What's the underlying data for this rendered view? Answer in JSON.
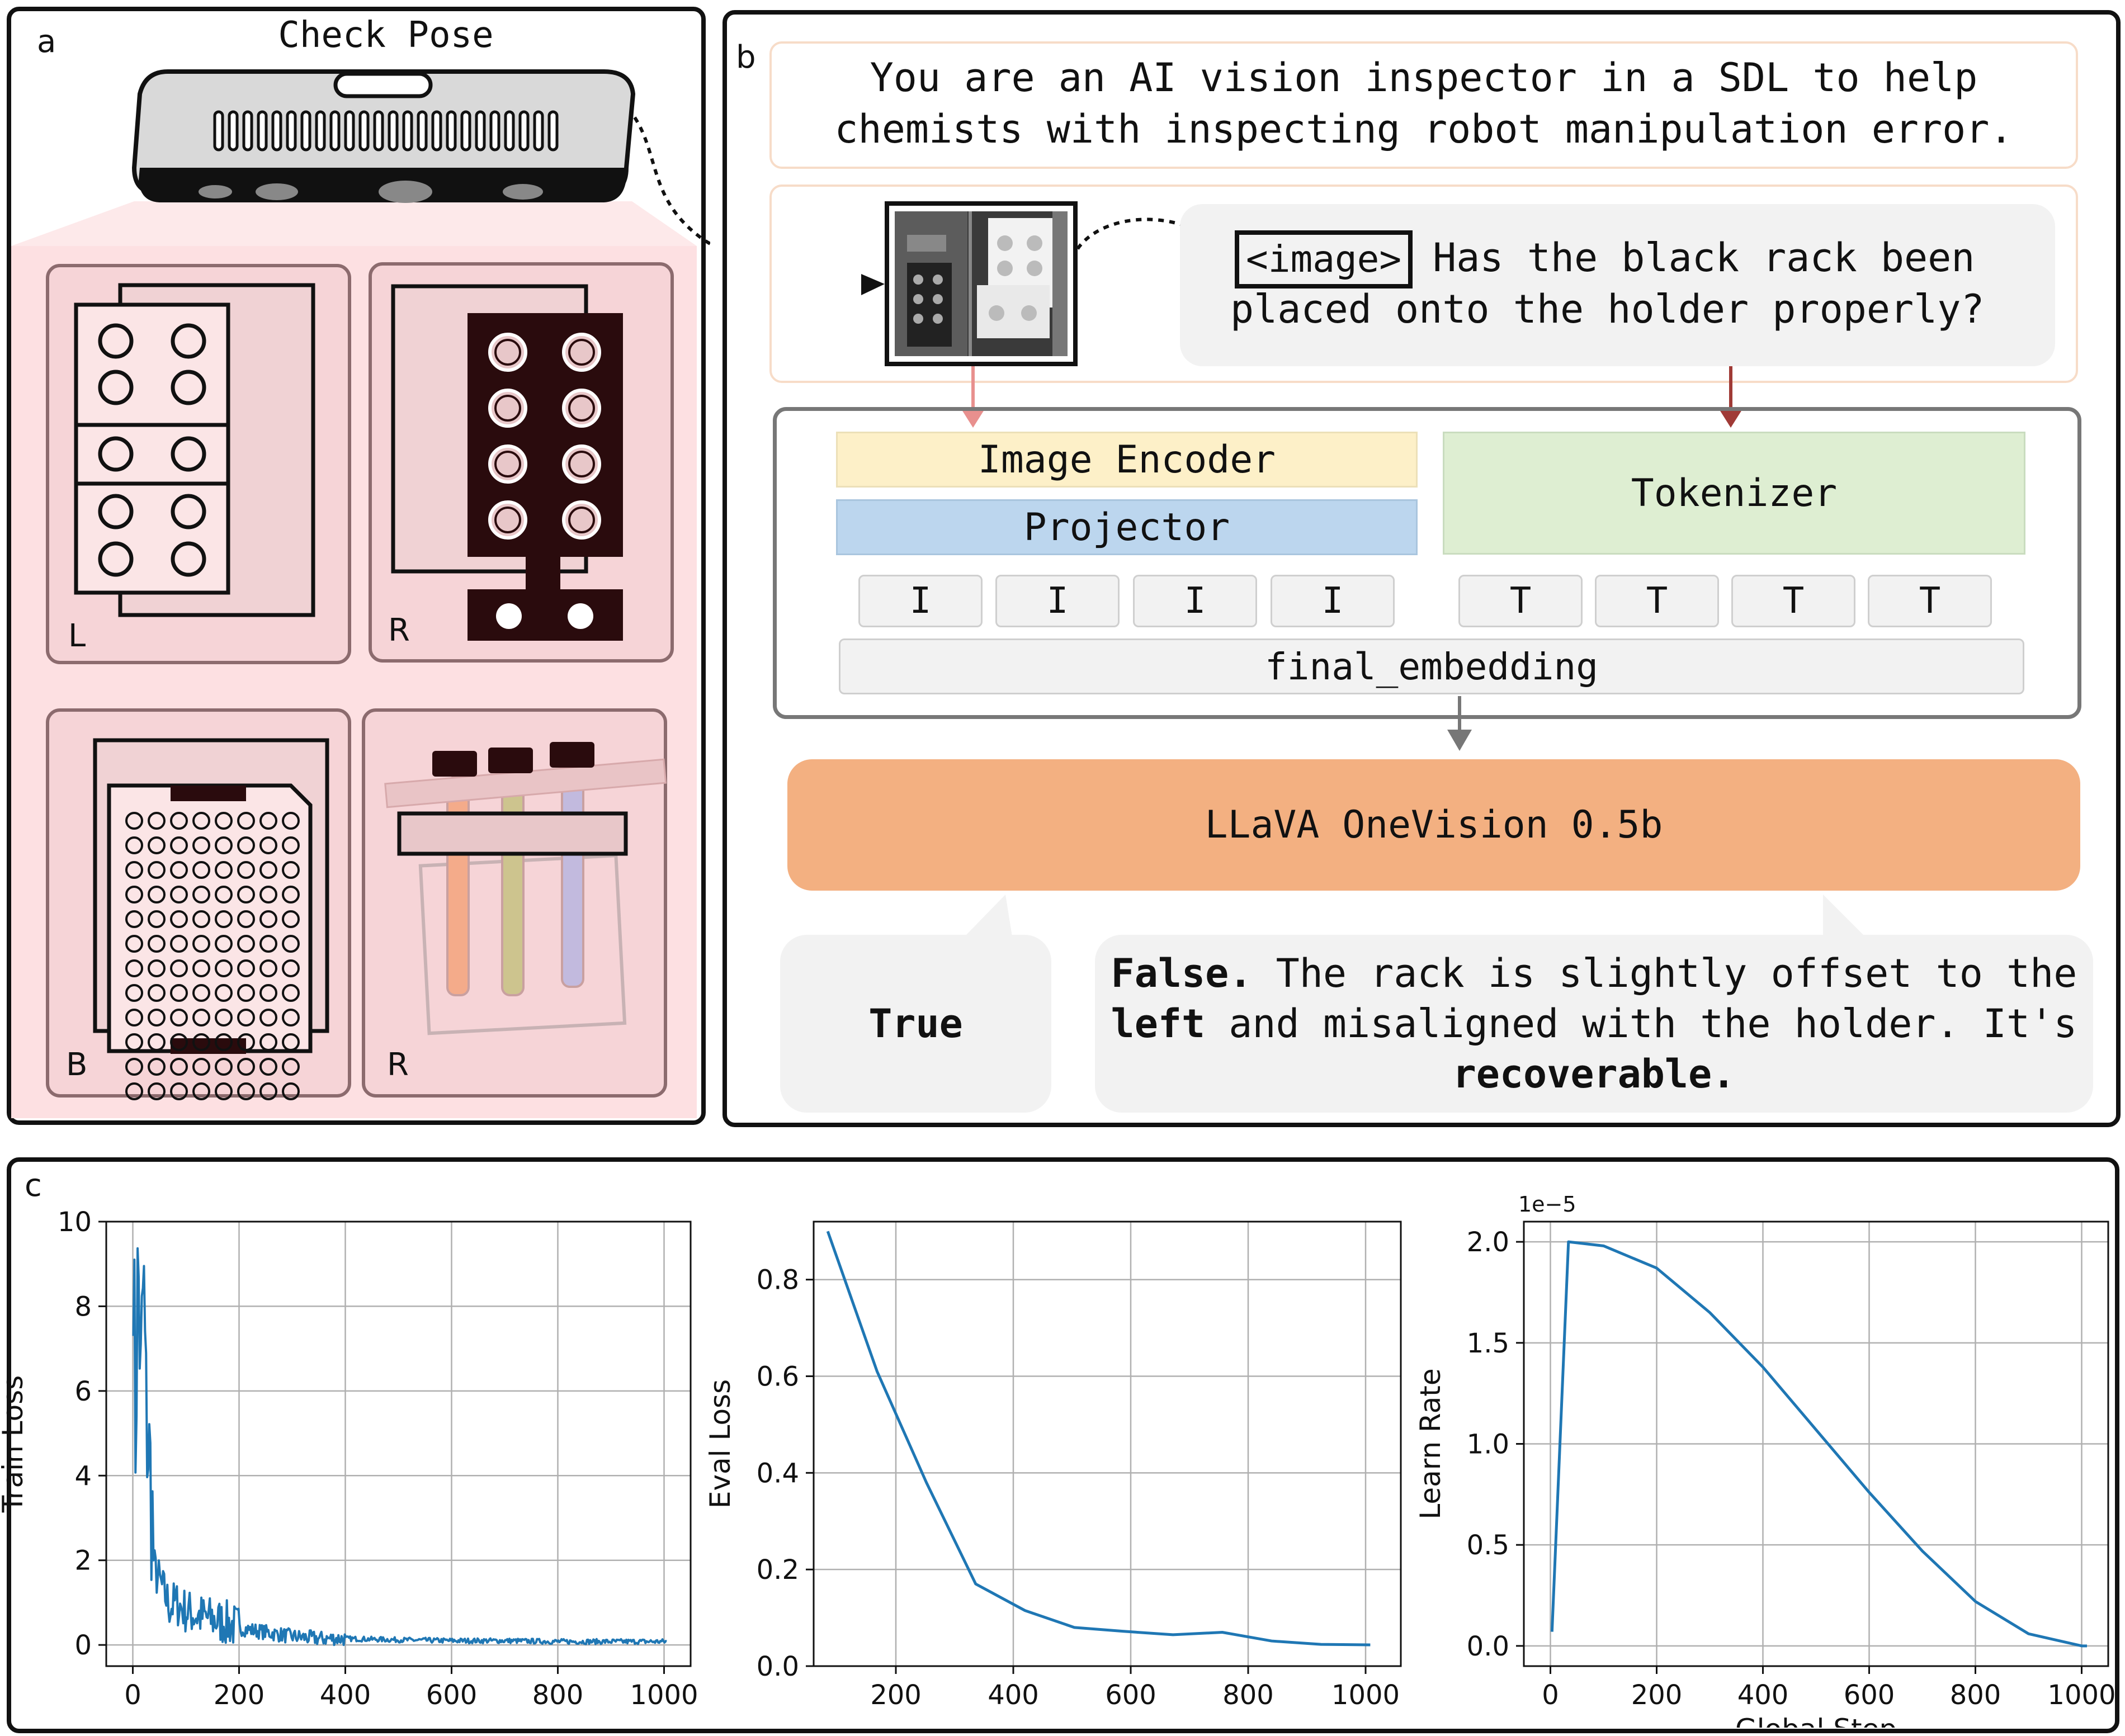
{
  "panel_a": {
    "label": "a",
    "camera_title": "Check Pose",
    "cards": [
      {
        "letter": "L"
      },
      {
        "letter": "R"
      },
      {
        "letter": "B"
      },
      {
        "letter": "R"
      }
    ]
  },
  "panel_b": {
    "label": "b",
    "system_prompt_lines": [
      "You are an AI vision inspector in a SDL to help",
      "chemists with inspecting robot manipulation error."
    ],
    "image_token": "<image>",
    "question_line1": " Has the black rack been",
    "question_line2": "placed onto the holder properly?",
    "image_encoder": "Image Encoder",
    "projector": "Projector",
    "tokenizer": "Tokenizer",
    "image_tokens": [
      "I",
      "I",
      "I",
      "I"
    ],
    "text_tokens": [
      "T",
      "T",
      "T",
      "T"
    ],
    "final_embedding": "final_embedding",
    "model": "LLaVA OneVision 0.5b",
    "answer_true": "True",
    "answer_false": {
      "bold1": "False.",
      "rest1": " The rack is slightly offset to the",
      "bold2": "left",
      "rest2": " and misaligned with the holder. It's",
      "bold3": "recoverable."
    },
    "colors": {
      "encoder": "#fdf0c8",
      "projector": "#bcd6ee",
      "tokenizer": "#deeed2",
      "model": "#f3b081",
      "arrow_image": "#e8908e",
      "arrow_text": "#a03a36"
    }
  },
  "panel_c": {
    "label": "c",
    "chart_data": [
      {
        "type": "line",
        "ylabel": "Train Loss",
        "xlabel": "",
        "xlim": [
          -50,
          1050
        ],
        "ylim": [
          -0.5,
          10
        ],
        "xticks": [
          0,
          200,
          400,
          600,
          800,
          1000
        ],
        "yticks": [
          0,
          2,
          4,
          6,
          8,
          10
        ],
        "grid": true,
        "color": "#1f77b4",
        "series": [
          {
            "x": [
              1,
              5,
              10,
              15,
              20,
              25,
              30,
              35,
              40,
              50,
              60,
              70,
              80,
              100,
              120,
              150,
              180,
              200,
              250,
              300,
              350,
              400,
              500,
              600,
              700,
              800,
              900,
              1000
            ],
            "values": [
              9.5,
              5.0,
              9.2,
              6.0,
              8.8,
              5.5,
              4.5,
              3.5,
              1.8,
              1.5,
              1.2,
              0.9,
              1.0,
              0.8,
              0.7,
              0.6,
              0.5,
              0.4,
              0.3,
              0.2,
              0.15,
              0.15,
              0.12,
              0.1,
              0.1,
              0.08,
              0.08,
              0.08
            ]
          }
        ]
      },
      {
        "type": "line",
        "ylabel": "Eval Loss",
        "xlabel": "",
        "xlim": [
          60,
          1060
        ],
        "ylim": [
          0,
          0.92
        ],
        "xticks": [
          200,
          400,
          600,
          800,
          1000
        ],
        "yticks": [
          0.0,
          0.2,
          0.4,
          0.6,
          0.8
        ],
        "grid": true,
        "color": "#1f77b4",
        "series": [
          {
            "x": [
              84,
              168,
              252,
              336,
              420,
              504,
              588,
              672,
              756,
              840,
              924,
              1008
            ],
            "values": [
              0.9,
              0.61,
              0.38,
              0.17,
              0.115,
              0.08,
              0.072,
              0.065,
              0.07,
              0.052,
              0.045,
              0.044
            ]
          }
        ]
      },
      {
        "type": "line",
        "ylabel": "Learn Rate",
        "xlabel": "Global Step",
        "offset_label": "1e−5",
        "xlim": [
          -50,
          1050
        ],
        "ylim": [
          -0.1,
          2.1
        ],
        "xticks": [
          0,
          200,
          400,
          600,
          800,
          1000
        ],
        "yticks": [
          0.0,
          0.5,
          1.0,
          1.5,
          2.0
        ],
        "grid": true,
        "color": "#1f77b4",
        "series": [
          {
            "x": [
              3,
              34,
              100,
              200,
              300,
              400,
              500,
              600,
              700,
              800,
              900,
              1000,
              1010
            ],
            "values": [
              0.07,
              2.0,
              1.98,
              1.87,
              1.65,
              1.38,
              1.07,
              0.76,
              0.47,
              0.22,
              0.06,
              0.0,
              0.0
            ]
          }
        ]
      }
    ]
  }
}
